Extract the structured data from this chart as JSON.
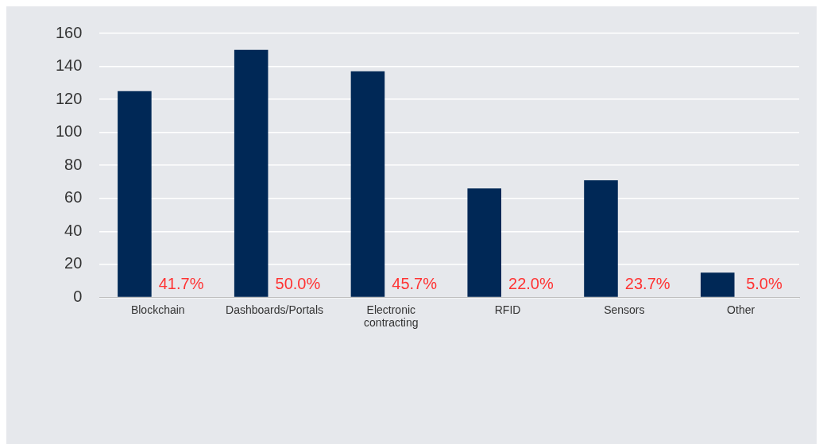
{
  "chart_data": {
    "type": "bar",
    "categories": [
      "Blockchain",
      "Dashboards/Portals",
      "Electronic contracting",
      "RFID",
      "Sensors",
      "Other"
    ],
    "values": [
      125,
      150,
      137,
      66,
      71,
      15
    ],
    "annotations": [
      "41.7%",
      "50.0%",
      "45.7%",
      "22.0%",
      "23.7%",
      "5.0%"
    ],
    "color": "#002856",
    "ylim": [
      0,
      160
    ],
    "yticks": [
      0,
      20,
      40,
      60,
      80,
      100,
      120,
      140,
      160
    ],
    "grid": "y",
    "legend": false
  }
}
